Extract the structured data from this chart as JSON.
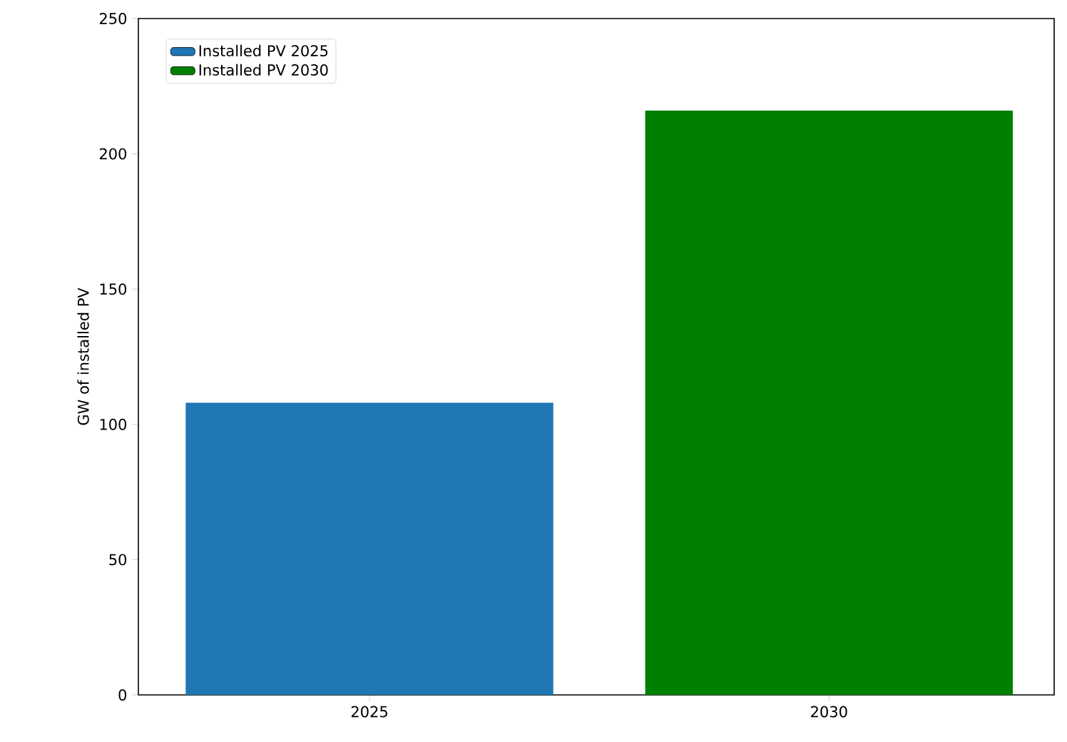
{
  "chart_data": {
    "type": "bar",
    "ylabel": "GW of installed PV",
    "categories": [
      "2025",
      "2030"
    ],
    "series": [
      {
        "name": "Installed PV 2025",
        "color": "#1f77b4",
        "values": [
          108,
          null
        ]
      },
      {
        "name": "Installed PV 2030",
        "color": "#008000",
        "values": [
          null,
          216
        ]
      }
    ],
    "ylim": [
      0,
      250
    ],
    "yticks": [
      0,
      50,
      100,
      150,
      200,
      250
    ],
    "legend": "top left"
  }
}
